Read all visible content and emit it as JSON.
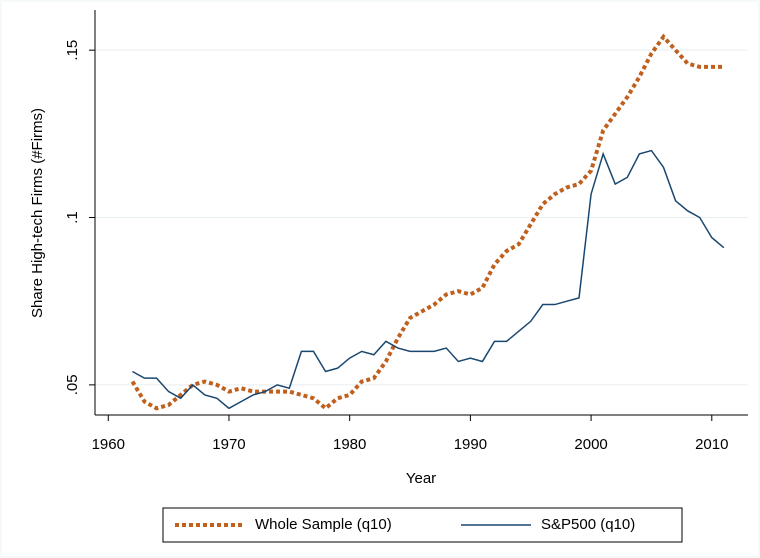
{
  "chart_data": {
    "type": "line",
    "x_label": "Year",
    "y_label": "Share High-tech Firms (#Firms)",
    "x": [
      1962,
      1963,
      1964,
      1965,
      1966,
      1967,
      1968,
      1969,
      1970,
      1971,
      1972,
      1973,
      1974,
      1975,
      1976,
      1977,
      1978,
      1979,
      1980,
      1981,
      1982,
      1983,
      1984,
      1985,
      1986,
      1987,
      1988,
      1989,
      1990,
      1991,
      1992,
      1993,
      1994,
      1995,
      1996,
      1997,
      1998,
      1999,
      2000,
      2001,
      2002,
      2003,
      2004,
      2005,
      2006,
      2007,
      2008,
      2009,
      2010,
      2011
    ],
    "series": [
      {
        "name": "Whole Sample (q10)",
        "color": "#c0601e",
        "dash": true,
        "values": [
          0.051,
          0.045,
          0.043,
          0.044,
          0.047,
          0.05,
          0.051,
          0.05,
          0.048,
          0.049,
          0.048,
          0.048,
          0.048,
          0.048,
          0.047,
          0.046,
          0.043,
          0.046,
          0.047,
          0.051,
          0.052,
          0.057,
          0.064,
          0.07,
          0.072,
          0.074,
          0.077,
          0.078,
          0.077,
          0.079,
          0.086,
          0.09,
          0.092,
          0.098,
          0.104,
          0.107,
          0.109,
          0.11,
          0.114,
          0.126,
          0.131,
          0.136,
          0.142,
          0.149,
          0.154,
          0.15,
          0.146,
          0.145,
          0.145,
          0.145
        ]
      },
      {
        "name": "S&P500 (q10)",
        "color": "#1a476f",
        "dash": false,
        "values": [
          0.054,
          0.052,
          0.052,
          0.048,
          0.046,
          0.05,
          0.047,
          0.046,
          0.043,
          0.045,
          0.047,
          0.048,
          0.05,
          0.049,
          0.06,
          0.06,
          0.054,
          0.055,
          0.058,
          0.06,
          0.059,
          0.063,
          0.061,
          0.06,
          0.06,
          0.06,
          0.061,
          0.057,
          0.058,
          0.057,
          0.063,
          0.063,
          0.066,
          0.069,
          0.074,
          0.074,
          0.075,
          0.076,
          0.107,
          0.119,
          0.11,
          0.112,
          0.119,
          0.12,
          0.115,
          0.105,
          0.102,
          0.1,
          0.094,
          0.091
        ]
      }
    ],
    "xlim": [
      1958.9,
      2013
    ],
    "xticks": [
      1960,
      1970,
      1980,
      1990,
      2000,
      2010
    ],
    "ylim": [
      0.041,
      0.162
    ],
    "yticks": [
      {
        "value": 0.05,
        "label": ".05"
      },
      {
        "value": 0.1,
        "label": ".1"
      },
      {
        "value": 0.15,
        "label": ".15"
      }
    ],
    "grid": true
  }
}
